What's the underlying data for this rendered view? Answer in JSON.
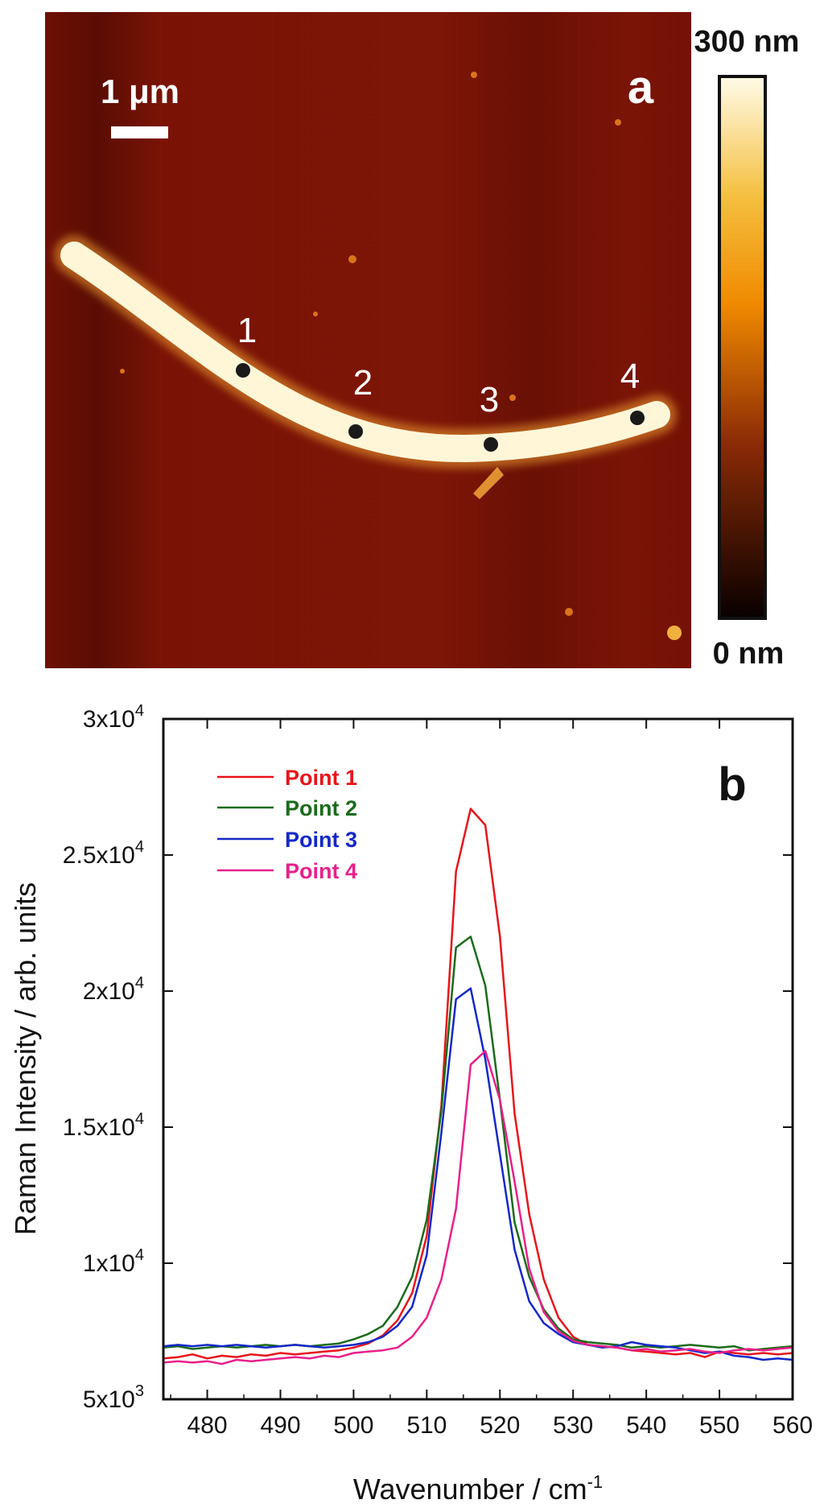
{
  "panel_a": {
    "label": "a",
    "scale_bar_label": "1 μm",
    "colorbar_max": "300 nm",
    "colorbar_min": "0 nm",
    "colors": {
      "background": "#7a1306",
      "wire": "#fff6d8",
      "colorbar_top": "#fffbe8",
      "colorbar_upper": "#f5c040",
      "colorbar_mid": "#f08a00",
      "colorbar_low": "#8a2a06",
      "colorbar_bottom": "#080000"
    },
    "points": [
      {
        "label": "1"
      },
      {
        "label": "2"
      },
      {
        "label": "3"
      },
      {
        "label": "4"
      }
    ]
  },
  "chart_data": {
    "type": "line",
    "panel_label": "b",
    "title": "",
    "xlabel": "Wavenumber / cm⁻¹",
    "xlabel_main": "Wavenumber / cm",
    "xlabel_sup": "-1",
    "ylabel": "Raman Intensity / arb. units",
    "xlim": [
      474,
      560
    ],
    "ylim": [
      5000,
      30000
    ],
    "xticks": [
      480,
      490,
      500,
      510,
      520,
      530,
      540,
      550,
      560
    ],
    "yticks": [
      {
        "value": 5000,
        "base": "5x10",
        "exp": "3"
      },
      {
        "value": 10000,
        "base": "1x10",
        "exp": "4"
      },
      {
        "value": 15000,
        "base": "1.5x10",
        "exp": "4"
      },
      {
        "value": 20000,
        "base": "2x10",
        "exp": "4"
      },
      {
        "value": 25000,
        "base": "2.5x10",
        "exp": "4"
      },
      {
        "value": 30000,
        "base": "3x10",
        "exp": "4"
      }
    ],
    "legend_position": "top-left",
    "x": [
      474,
      476,
      478,
      480,
      482,
      484,
      486,
      488,
      490,
      492,
      494,
      496,
      498,
      500,
      502,
      504,
      506,
      508,
      510,
      512,
      514,
      516,
      518,
      520,
      522,
      524,
      526,
      528,
      530,
      532,
      534,
      536,
      538,
      540,
      542,
      544,
      546,
      548,
      550,
      552,
      554,
      556,
      558,
      560
    ],
    "series": [
      {
        "name": "Point 1",
        "color": "#e8141b",
        "values": [
          6500,
          6550,
          6650,
          6500,
          6600,
          6550,
          6650,
          6600,
          6700,
          6650,
          6700,
          6750,
          6800,
          6900,
          7050,
          7350,
          7900,
          8900,
          11000,
          15800,
          24400,
          26700,
          26100,
          22000,
          15500,
          11800,
          9400,
          8000,
          7300,
          7000,
          6950,
          6900,
          6800,
          6750,
          6700,
          6650,
          6700,
          6550,
          6750,
          6700,
          6650,
          6700,
          6650,
          6700
        ]
      },
      {
        "name": "Point 2",
        "color": "#1b6b1b",
        "values": [
          6900,
          6950,
          6850,
          6900,
          6950,
          6900,
          6950,
          7000,
          6950,
          7000,
          6950,
          7000,
          7050,
          7200,
          7400,
          7700,
          8400,
          9500,
          11600,
          15600,
          21600,
          22000,
          20200,
          16000,
          11500,
          9500,
          8300,
          7600,
          7200,
          7100,
          7050,
          7000,
          6900,
          6950,
          6900,
          6950,
          7000,
          6950,
          6900,
          6950,
          6800,
          6850,
          6900,
          6950
        ]
      },
      {
        "name": "Point 3",
        "color": "#1428c8",
        "values": [
          6950,
          7000,
          6950,
          7000,
          6950,
          7000,
          6950,
          6900,
          6950,
          7000,
          6950,
          6900,
          6950,
          7000,
          7100,
          7300,
          7700,
          8400,
          10300,
          14800,
          19700,
          20100,
          17500,
          14000,
          10500,
          8600,
          7800,
          7400,
          7100,
          7000,
          6900,
          6950,
          7100,
          7000,
          6950,
          6900,
          6800,
          6700,
          6750,
          6600,
          6550,
          6450,
          6500,
          6450
        ]
      },
      {
        "name": "Point 4",
        "color": "#e8208a",
        "values": [
          6350,
          6400,
          6350,
          6400,
          6300,
          6450,
          6400,
          6450,
          6500,
          6550,
          6500,
          6600,
          6550,
          6700,
          6750,
          6800,
          6900,
          7300,
          8000,
          9400,
          12000,
          17300,
          17800,
          16000,
          13000,
          9800,
          8200,
          7500,
          7150,
          7000,
          6950,
          6900,
          6800,
          6850,
          6750,
          6800,
          6850,
          6750,
          6700,
          6800,
          6850,
          6800,
          6850,
          6900
        ]
      }
    ]
  }
}
